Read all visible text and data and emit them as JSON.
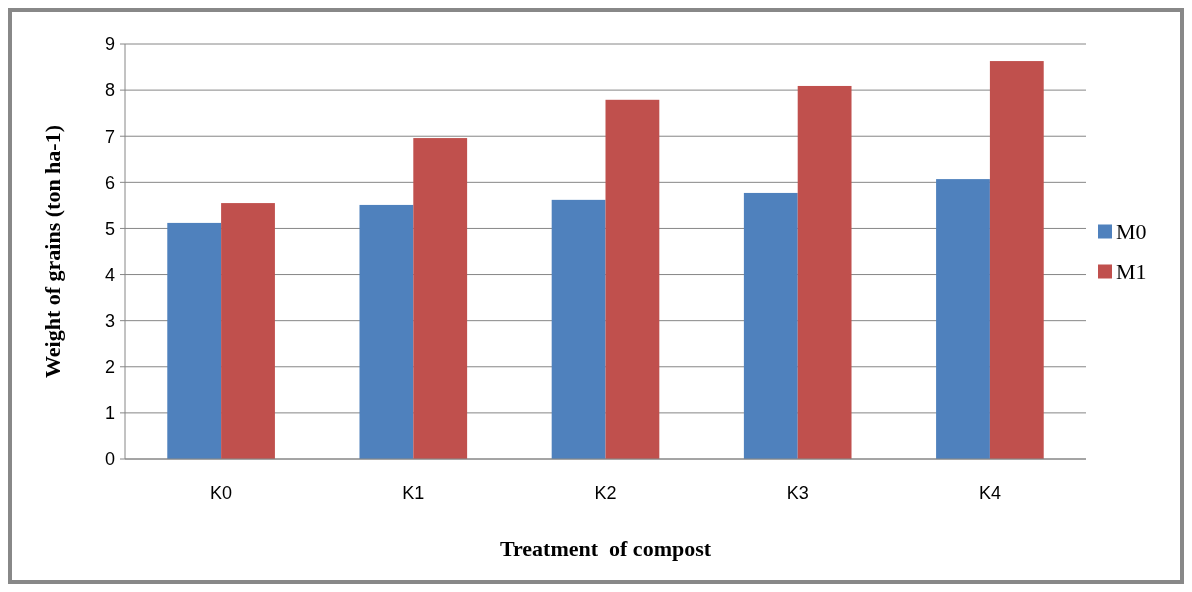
{
  "chart_data": {
    "type": "bar",
    "xlabel": "Treatment  of compost",
    "ylabel": "Weight of grains (ton ha-1)",
    "categories": [
      "K0",
      "K1",
      "K2",
      "K3",
      "K4"
    ],
    "series": [
      {
        "name": "M0",
        "color": "#4f81bd",
        "values": [
          5.12,
          5.51,
          5.62,
          5.77,
          6.07
        ]
      },
      {
        "name": "M1",
        "color": "#c0504d",
        "values": [
          5.55,
          6.96,
          7.79,
          8.09,
          8.63
        ]
      }
    ],
    "ylim": [
      0,
      9
    ],
    "yticks": [
      0,
      1,
      2,
      3,
      4,
      5,
      6,
      7,
      8,
      9
    ],
    "grid": "y",
    "legend": "right"
  }
}
